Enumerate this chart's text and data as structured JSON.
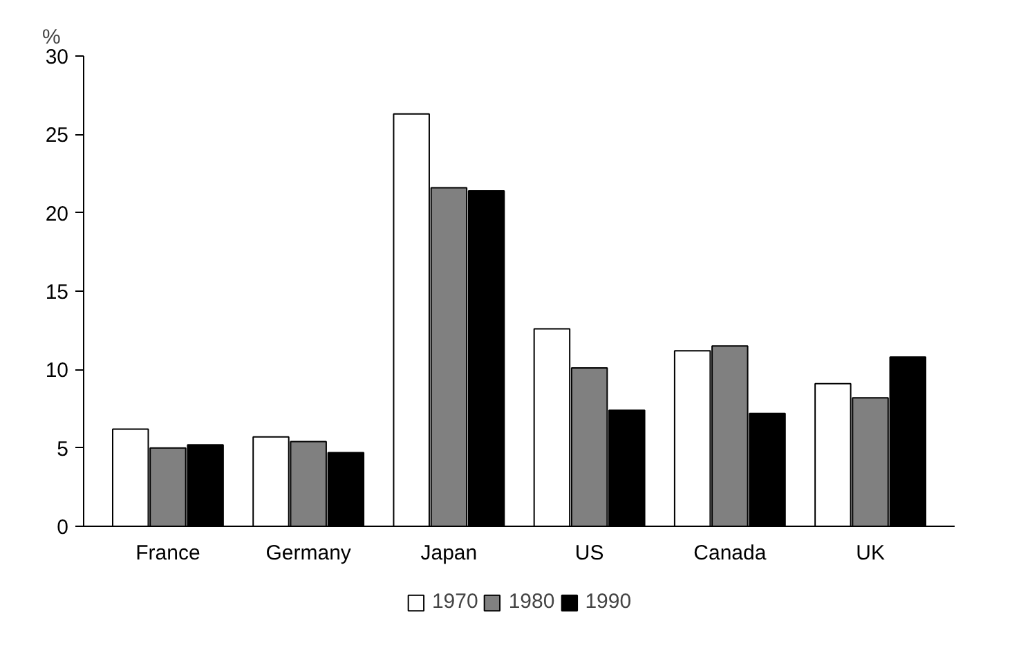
{
  "chart_data": {
    "type": "bar",
    "ylabel": "%",
    "categories": [
      "France",
      "Germany",
      "Japan",
      "US",
      "Canada",
      "UK"
    ],
    "series": [
      {
        "name": "1970",
        "color": "#ffffff",
        "values": [
          6.2,
          5.7,
          26.3,
          12.6,
          11.2,
          9.1
        ]
      },
      {
        "name": "1980",
        "color": "#808080",
        "values": [
          5.0,
          5.4,
          21.6,
          10.1,
          11.5,
          8.2
        ]
      },
      {
        "name": "1990",
        "color": "#000000",
        "values": [
          5.2,
          4.7,
          21.4,
          7.4,
          7.2,
          10.8
        ]
      }
    ],
    "ylim": [
      0,
      30
    ],
    "yticks": [
      0,
      5,
      10,
      15,
      20,
      25,
      30
    ],
    "grid": false,
    "legend": "bottom"
  }
}
